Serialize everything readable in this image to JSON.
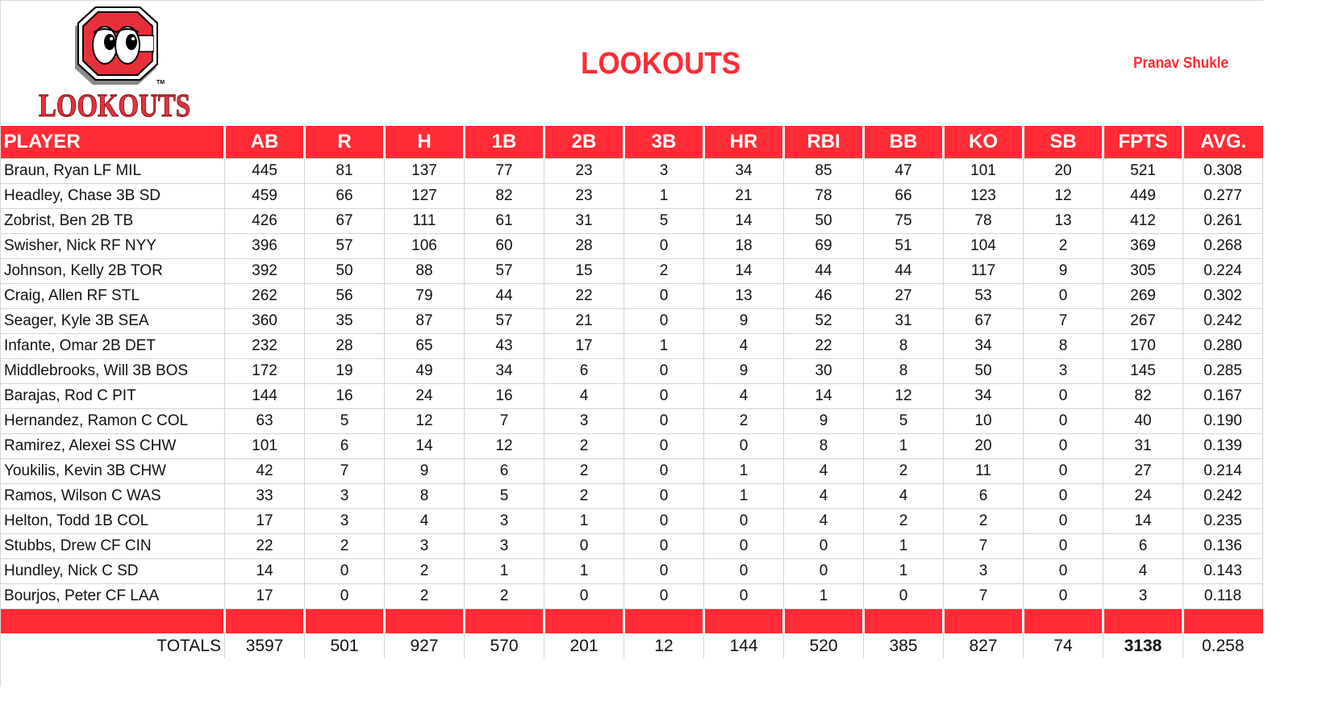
{
  "header": {
    "logo_text": "LOOKOUTS",
    "logo_letter": "C",
    "logo_tm": "TM",
    "title": "LOOKOUTS",
    "owner": "Pranav Shukle"
  },
  "colors": {
    "accent": "#ff2b35",
    "grid": "#d4d4d4"
  },
  "table": {
    "columns": [
      "PLAYER",
      "AB",
      "R",
      "H",
      "1B",
      "2B",
      "3B",
      "HR",
      "RBI",
      "BB",
      "KO",
      "SB",
      "FPTS",
      "AVG."
    ],
    "rows": [
      [
        "Braun, Ryan LF MIL",
        "445",
        "81",
        "137",
        "77",
        "23",
        "3",
        "34",
        "85",
        "47",
        "101",
        "20",
        "521",
        "0.308"
      ],
      [
        "Headley, Chase 3B SD",
        "459",
        "66",
        "127",
        "82",
        "23",
        "1",
        "21",
        "78",
        "66",
        "123",
        "12",
        "449",
        "0.277"
      ],
      [
        "Zobrist, Ben 2B TB",
        "426",
        "67",
        "111",
        "61",
        "31",
        "5",
        "14",
        "50",
        "75",
        "78",
        "13",
        "412",
        "0.261"
      ],
      [
        "Swisher, Nick RF NYY",
        "396",
        "57",
        "106",
        "60",
        "28",
        "0",
        "18",
        "69",
        "51",
        "104",
        "2",
        "369",
        "0.268"
      ],
      [
        "Johnson, Kelly 2B TOR",
        "392",
        "50",
        "88",
        "57",
        "15",
        "2",
        "14",
        "44",
        "44",
        "117",
        "9",
        "305",
        "0.224"
      ],
      [
        "Craig, Allen RF STL",
        "262",
        "56",
        "79",
        "44",
        "22",
        "0",
        "13",
        "46",
        "27",
        "53",
        "0",
        "269",
        "0.302"
      ],
      [
        "Seager, Kyle 3B SEA",
        "360",
        "35",
        "87",
        "57",
        "21",
        "0",
        "9",
        "52",
        "31",
        "67",
        "7",
        "267",
        "0.242"
      ],
      [
        "Infante, Omar 2B DET",
        "232",
        "28",
        "65",
        "43",
        "17",
        "1",
        "4",
        "22",
        "8",
        "34",
        "8",
        "170",
        "0.280"
      ],
      [
        "Middlebrooks, Will 3B BOS",
        "172",
        "19",
        "49",
        "34",
        "6",
        "0",
        "9",
        "30",
        "8",
        "50",
        "3",
        "145",
        "0.285"
      ],
      [
        "Barajas, Rod C PIT",
        "144",
        "16",
        "24",
        "16",
        "4",
        "0",
        "4",
        "14",
        "12",
        "34",
        "0",
        "82",
        "0.167"
      ],
      [
        "Hernandez, Ramon C COL",
        "63",
        "5",
        "12",
        "7",
        "3",
        "0",
        "2",
        "9",
        "5",
        "10",
        "0",
        "40",
        "0.190"
      ],
      [
        "Ramirez, Alexei SS CHW",
        "101",
        "6",
        "14",
        "12",
        "2",
        "0",
        "0",
        "8",
        "1",
        "20",
        "0",
        "31",
        "0.139"
      ],
      [
        "Youkilis, Kevin 3B CHW",
        "42",
        "7",
        "9",
        "6",
        "2",
        "0",
        "1",
        "4",
        "2",
        "11",
        "0",
        "27",
        "0.214"
      ],
      [
        "Ramos, Wilson C WAS",
        "33",
        "3",
        "8",
        "5",
        "2",
        "0",
        "1",
        "4",
        "4",
        "6",
        "0",
        "24",
        "0.242"
      ],
      [
        "Helton, Todd 1B COL",
        "17",
        "3",
        "4",
        "3",
        "1",
        "0",
        "0",
        "4",
        "2",
        "2",
        "0",
        "14",
        "0.235"
      ],
      [
        "Stubbs, Drew CF CIN",
        "22",
        "2",
        "3",
        "3",
        "0",
        "0",
        "0",
        "0",
        "1",
        "7",
        "0",
        "6",
        "0.136"
      ],
      [
        "Hundley, Nick C SD",
        "14",
        "0",
        "2",
        "1",
        "1",
        "0",
        "0",
        "0",
        "1",
        "3",
        "0",
        "4",
        "0.143"
      ],
      [
        "Bourjos, Peter CF LAA",
        "17",
        "0",
        "2",
        "2",
        "0",
        "0",
        "0",
        "1",
        "0",
        "7",
        "0",
        "3",
        "0.118"
      ]
    ],
    "totals": [
      "TOTALS",
      "3597",
      "501",
      "927",
      "570",
      "201",
      "12",
      "144",
      "520",
      "385",
      "827",
      "74",
      "3138",
      "0.258"
    ]
  }
}
